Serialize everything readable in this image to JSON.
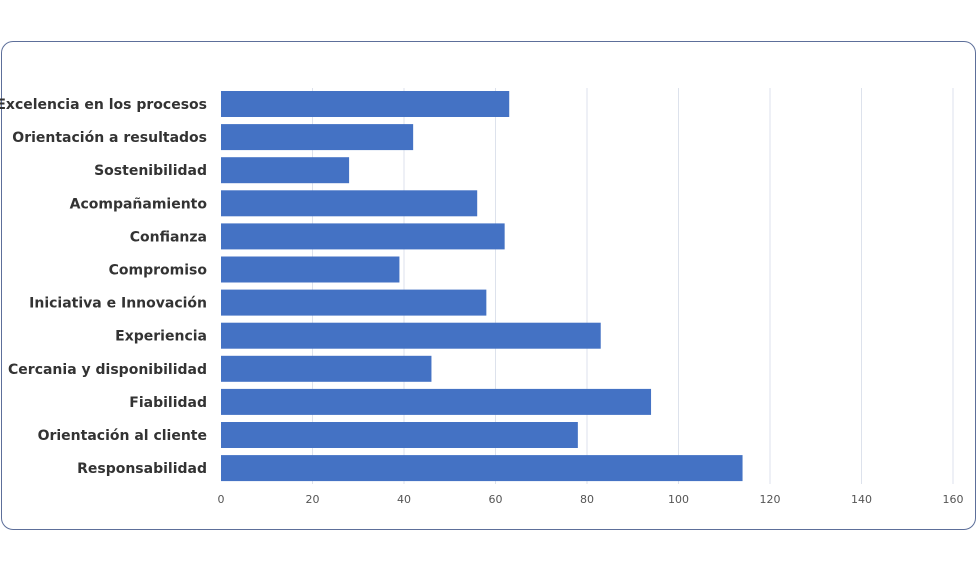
{
  "chart_data": {
    "type": "bar",
    "orientation": "horizontal",
    "categories": [
      "Excelencia en los procesos",
      "Orientación a resultados",
      "Sostenibilidad",
      "Acompañamiento",
      "Confianza",
      "Compromiso",
      "Iniciativa e Innovación",
      "Experiencia",
      "Cercania y disponibilidad",
      "Fiabilidad",
      "Orientación al cliente",
      "Responsabilidad"
    ],
    "values": [
      63,
      42,
      28,
      56,
      62,
      39,
      58,
      83,
      46,
      94,
      78,
      114
    ],
    "xlim": [
      0,
      160
    ],
    "x_ticks": [
      0,
      20,
      40,
      60,
      80,
      100,
      120,
      140,
      160
    ],
    "grid": true,
    "bar_color": "#4472c4",
    "legend": "none"
  }
}
